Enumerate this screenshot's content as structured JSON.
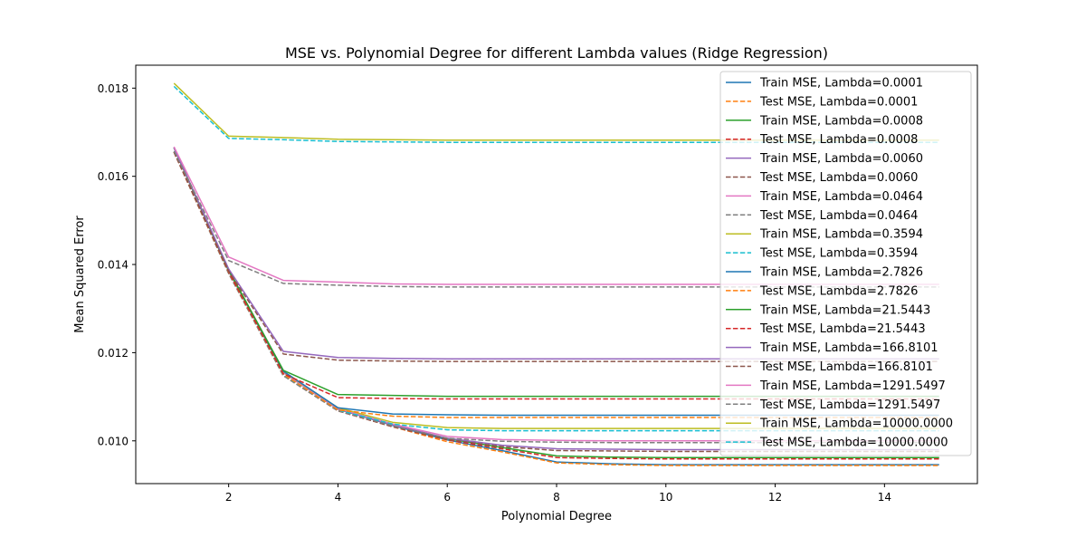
{
  "chart_data": {
    "type": "line",
    "title": "MSE vs. Polynomial Degree for different Lambda values (Ridge Regression)",
    "xlabel": "Polynomial Degree",
    "ylabel": "Mean Squared Error",
    "xlim": [
      0.3,
      15.7
    ],
    "ylim": [
      0.00903,
      0.01852
    ],
    "xticks": [
      2,
      4,
      6,
      8,
      10,
      12,
      14
    ],
    "yticks": [
      0.01,
      0.012,
      0.014,
      0.016,
      0.018
    ],
    "ytick_labels": [
      "0.010",
      "0.012",
      "0.014",
      "0.016",
      "0.018"
    ],
    "grid": false,
    "legend_position": "upper right",
    "x": [
      1,
      2,
      3,
      4,
      5,
      6,
      7,
      8,
      9,
      10,
      11,
      12,
      13,
      14,
      15
    ],
    "series": [
      {
        "name": "Train MSE, Lambda=0.0001",
        "color": "#1f77b4",
        "style": "solid",
        "values": [
          0.01665,
          0.01385,
          0.01155,
          0.01072,
          0.01035,
          0.01002,
          0.00978,
          0.00952,
          0.00948,
          0.00946,
          0.00946,
          0.00946,
          0.00946,
          0.00946,
          0.00946
        ]
      },
      {
        "name": "Test MSE, Lambda=0.0001",
        "color": "#ff7f0e",
        "style": "dashed",
        "values": [
          0.01655,
          0.0138,
          0.01148,
          0.01068,
          0.01032,
          0.00998,
          0.00975,
          0.0095,
          0.00946,
          0.00944,
          0.00944,
          0.00944,
          0.00944,
          0.00944,
          0.00944
        ]
      },
      {
        "name": "Train MSE, Lambda=0.0008",
        "color": "#2ca02c",
        "style": "solid",
        "values": [
          0.01665,
          0.01385,
          0.01155,
          0.01072,
          0.01036,
          0.01005,
          0.00985,
          0.00966,
          0.00963,
          0.00962,
          0.00962,
          0.00962,
          0.00962,
          0.00962,
          0.00962
        ]
      },
      {
        "name": "Test MSE, Lambda=0.0008",
        "color": "#d62728",
        "style": "dashed",
        "values": [
          0.01655,
          0.0138,
          0.01148,
          0.01068,
          0.01032,
          0.01002,
          0.00982,
          0.00962,
          0.0096,
          0.00959,
          0.00959,
          0.00959,
          0.00959,
          0.00959,
          0.00959
        ]
      },
      {
        "name": "Train MSE, Lambda=0.0060",
        "color": "#9467bd",
        "style": "solid",
        "values": [
          0.01665,
          0.01385,
          0.01155,
          0.01072,
          0.01036,
          0.01006,
          0.0099,
          0.00982,
          0.00981,
          0.0098,
          0.0098,
          0.0098,
          0.0098,
          0.0098,
          0.0098
        ]
      },
      {
        "name": "Test MSE, Lambda=0.0060",
        "color": "#8c564b",
        "style": "dashed",
        "values": [
          0.01655,
          0.0138,
          0.01148,
          0.01068,
          0.01032,
          0.01003,
          0.00987,
          0.00978,
          0.00977,
          0.00976,
          0.00976,
          0.00976,
          0.00976,
          0.00976,
          0.00976
        ]
      },
      {
        "name": "Train MSE, Lambda=0.0464",
        "color": "#e377c2",
        "style": "solid",
        "values": [
          0.01665,
          0.01385,
          0.01155,
          0.01073,
          0.01038,
          0.0101,
          0.01003,
          0.01001,
          0.01,
          0.01,
          0.01,
          0.01,
          0.01,
          0.01,
          0.01
        ]
      },
      {
        "name": "Test MSE, Lambda=0.0464",
        "color": "#7f7f7f",
        "style": "dashed",
        "values": [
          0.01655,
          0.0138,
          0.01148,
          0.01068,
          0.01034,
          0.01006,
          0.00999,
          0.00997,
          0.00996,
          0.00996,
          0.00996,
          0.00996,
          0.00996,
          0.00996,
          0.00996
        ]
      },
      {
        "name": "Train MSE, Lambda=0.3594",
        "color": "#bcbd22",
        "style": "solid",
        "values": [
          0.01665,
          0.01386,
          0.01157,
          0.01075,
          0.01042,
          0.0103,
          0.01028,
          0.01028,
          0.01028,
          0.01028,
          0.01028,
          0.01028,
          0.01028,
          0.01028,
          0.01028
        ]
      },
      {
        "name": "Test MSE, Lambda=0.3594",
        "color": "#17becf",
        "style": "dashed",
        "values": [
          0.01655,
          0.01381,
          0.0115,
          0.0107,
          0.01038,
          0.01025,
          0.01023,
          0.01023,
          0.01023,
          0.01023,
          0.01023,
          0.01023,
          0.01023,
          0.01023,
          0.01023
        ]
      },
      {
        "name": "Train MSE, Lambda=2.7826",
        "color": "#1f77b4",
        "style": "solid",
        "values": [
          0.01665,
          0.01387,
          0.01158,
          0.01075,
          0.01061,
          0.01059,
          0.01058,
          0.01058,
          0.01058,
          0.01058,
          0.01058,
          0.01058,
          0.01058,
          0.01058,
          0.01058
        ]
      },
      {
        "name": "Test MSE, Lambda=2.7826",
        "color": "#ff7f0e",
        "style": "dashed",
        "values": [
          0.01655,
          0.01382,
          0.01151,
          0.0107,
          0.01056,
          0.01053,
          0.01053,
          0.01053,
          0.01053,
          0.01053,
          0.01053,
          0.01053,
          0.01053,
          0.01053,
          0.01053
        ]
      },
      {
        "name": "Train MSE, Lambda=21.5443",
        "color": "#2ca02c",
        "style": "solid",
        "values": [
          0.01665,
          0.01388,
          0.0116,
          0.01105,
          0.01103,
          0.01101,
          0.01101,
          0.01101,
          0.01101,
          0.01101,
          0.01101,
          0.01101,
          0.01101,
          0.01101,
          0.01101
        ]
      },
      {
        "name": "Test MSE, Lambda=21.5443",
        "color": "#d62728",
        "style": "dashed",
        "values": [
          0.01655,
          0.01383,
          0.01152,
          0.01098,
          0.01096,
          0.01095,
          0.01095,
          0.01095,
          0.01095,
          0.01095,
          0.01095,
          0.01095,
          0.01095,
          0.01095,
          0.01095
        ]
      },
      {
        "name": "Train MSE, Lambda=166.8101",
        "color": "#9467bd",
        "style": "solid",
        "values": [
          0.01665,
          0.0139,
          0.01203,
          0.01189,
          0.01187,
          0.01186,
          0.01186,
          0.01186,
          0.01186,
          0.01186,
          0.01186,
          0.01186,
          0.01186,
          0.01186,
          0.01186
        ]
      },
      {
        "name": "Test MSE, Lambda=166.8101",
        "color": "#8c564b",
        "style": "dashed",
        "values": [
          0.01655,
          0.01385,
          0.01197,
          0.01183,
          0.01181,
          0.0118,
          0.0118,
          0.0118,
          0.0118,
          0.0118,
          0.0118,
          0.0118,
          0.0118,
          0.0118,
          0.0118
        ]
      },
      {
        "name": "Train MSE, Lambda=1291.5497",
        "color": "#e377c2",
        "style": "solid",
        "values": [
          0.01667,
          0.01417,
          0.01364,
          0.0136,
          0.01356,
          0.01355,
          0.01355,
          0.01355,
          0.01355,
          0.01355,
          0.01355,
          0.01355,
          0.01355,
          0.01355,
          0.01355
        ]
      },
      {
        "name": "Test MSE, Lambda=1291.5497",
        "color": "#7f7f7f",
        "style": "dashed",
        "values": [
          0.01657,
          0.01409,
          0.01357,
          0.01353,
          0.0135,
          0.01349,
          0.01349,
          0.01349,
          0.01349,
          0.01349,
          0.01349,
          0.01349,
          0.01349,
          0.01349,
          0.01349
        ]
      },
      {
        "name": "Train MSE, Lambda=10000.0000",
        "color": "#bcbd22",
        "style": "solid",
        "values": [
          0.01811,
          0.01691,
          0.01688,
          0.01684,
          0.01683,
          0.01682,
          0.01682,
          0.01682,
          0.01682,
          0.01682,
          0.01682,
          0.01682,
          0.01682,
          0.01682,
          0.01682
        ]
      },
      {
        "name": "Test MSE, Lambda=10000.0000",
        "color": "#17becf",
        "style": "dashed",
        "values": [
          0.01804,
          0.01686,
          0.01683,
          0.01679,
          0.01678,
          0.01677,
          0.01677,
          0.01677,
          0.01677,
          0.01677,
          0.01677,
          0.01677,
          0.01677,
          0.01677,
          0.01677
        ]
      }
    ]
  }
}
